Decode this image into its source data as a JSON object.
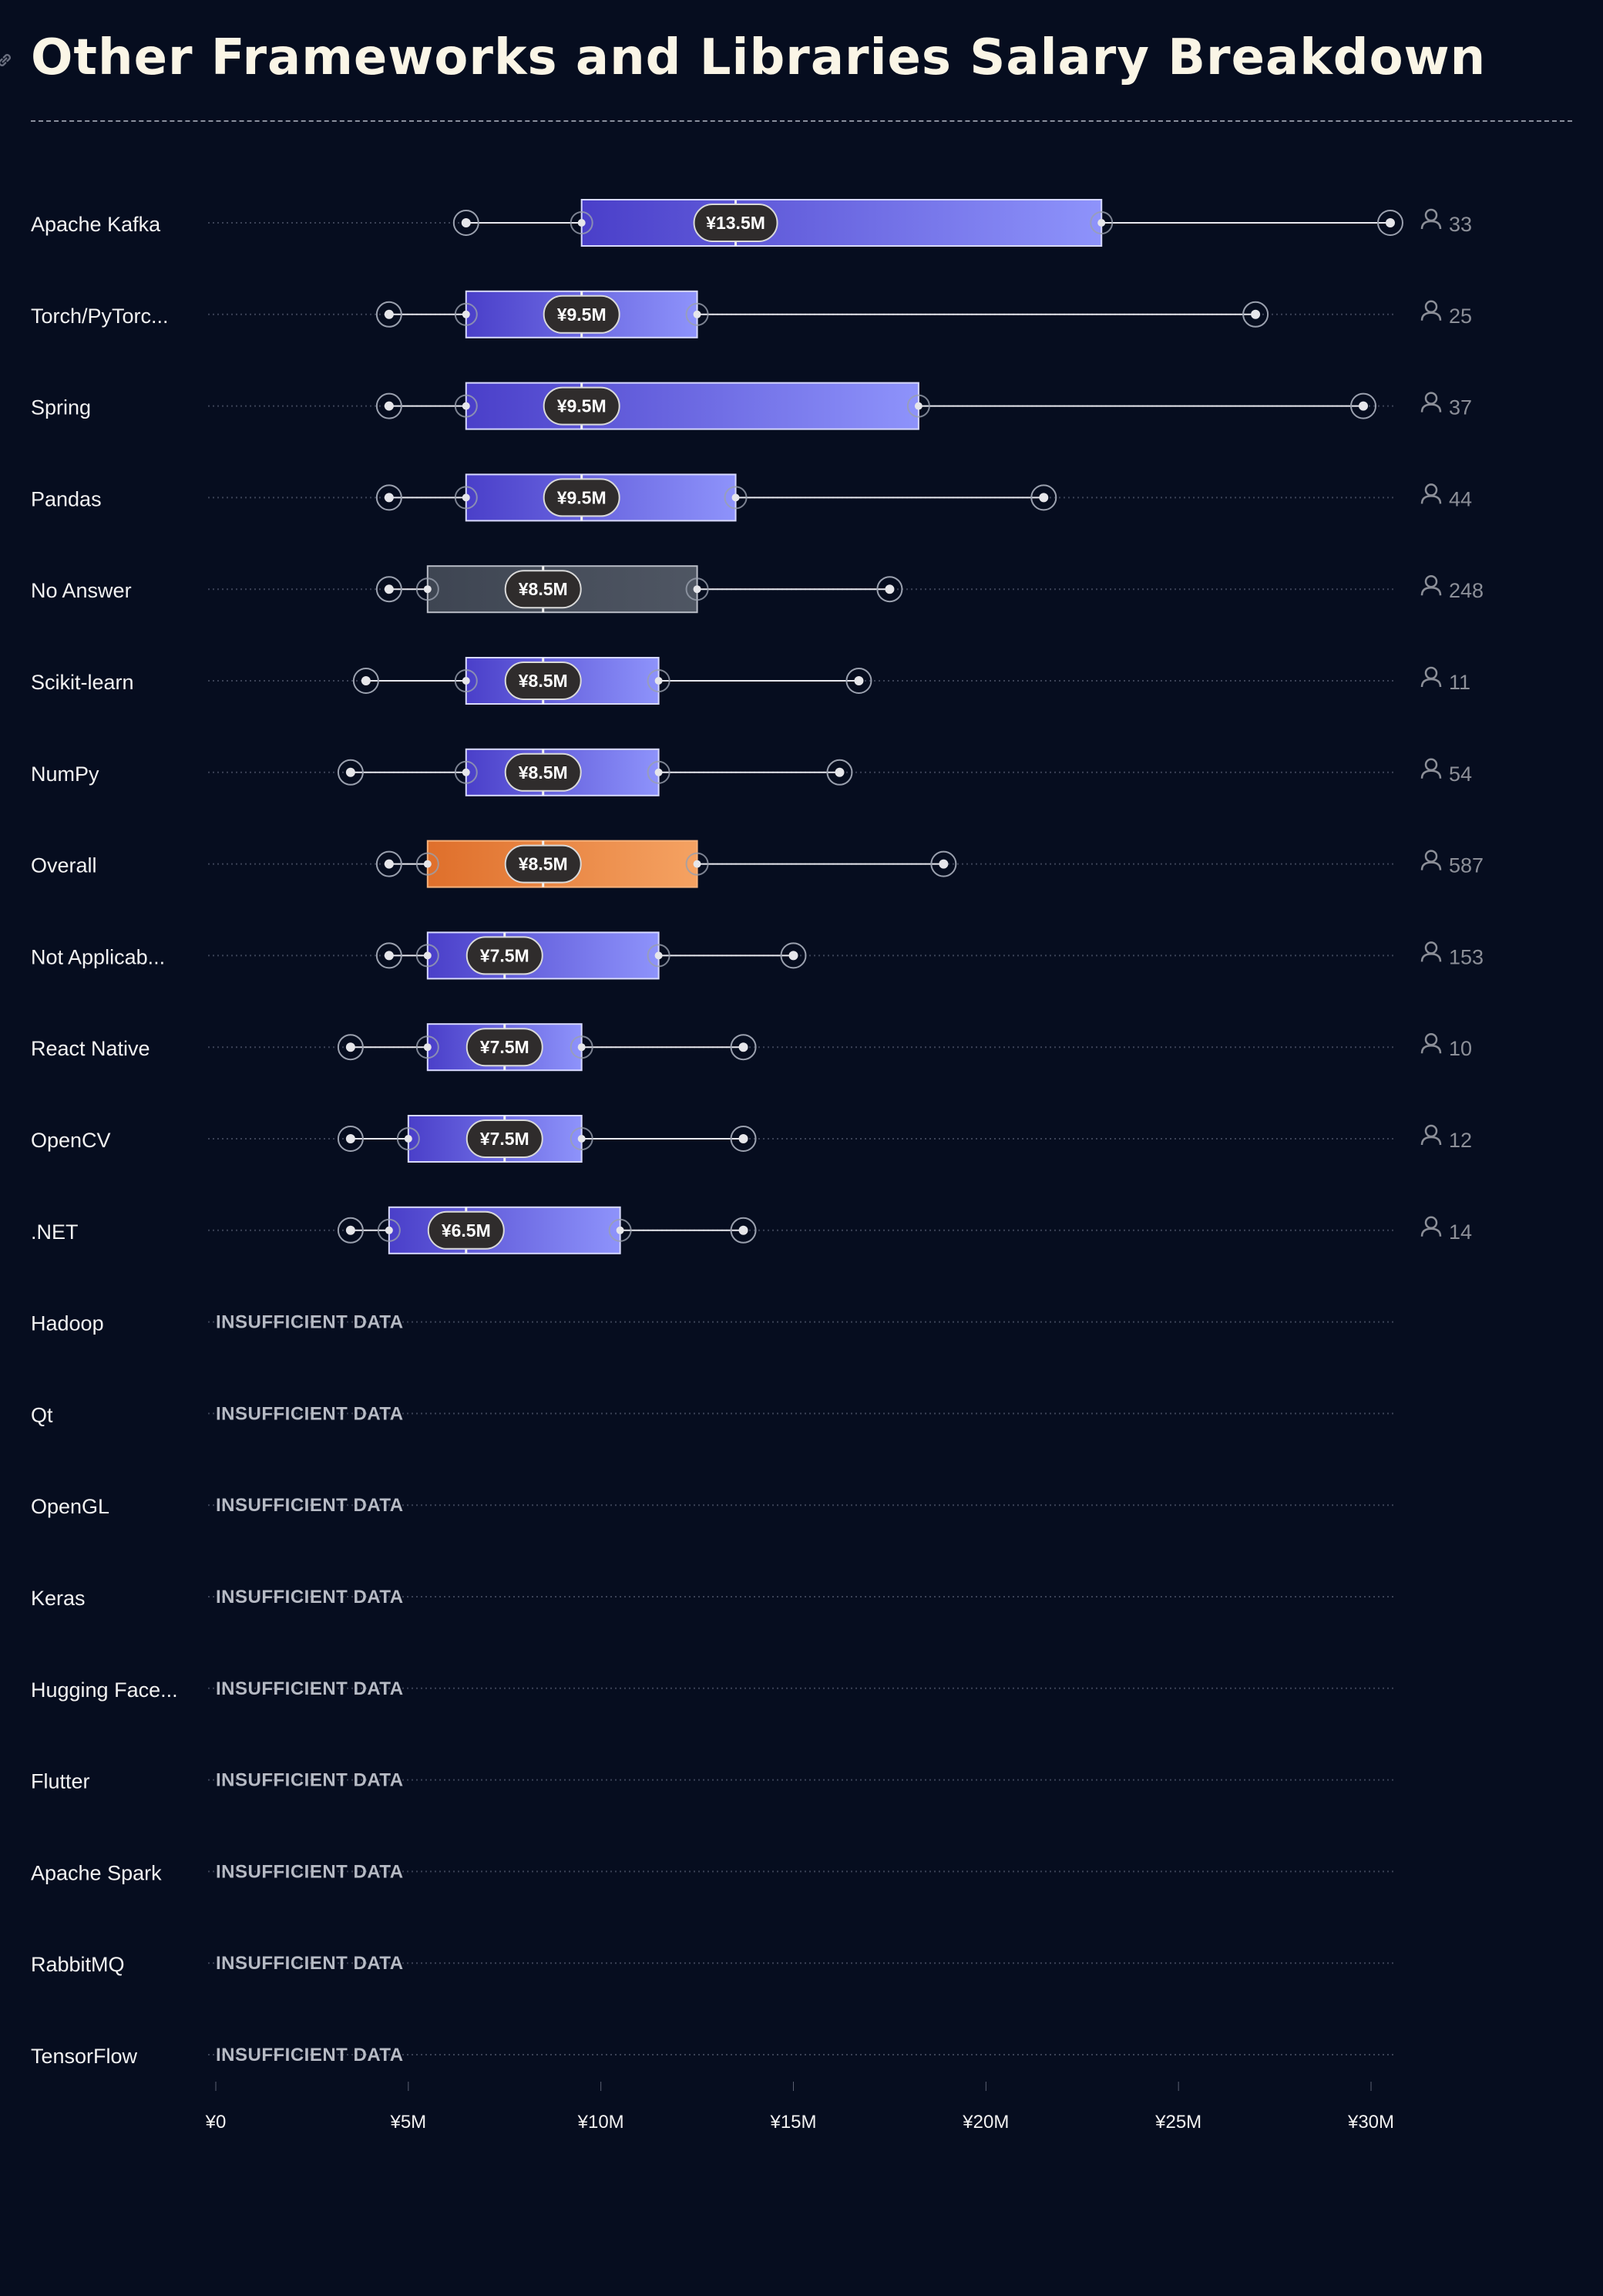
{
  "title": "Other Frameworks and Libraries Salary Breakdown",
  "colors": {
    "background": "#060d1f",
    "title": "#faf5e6",
    "framework_box_start": "#4a3fc9",
    "framework_box_end": "#8e93fb",
    "overall_box_start": "#df6f2b",
    "overall_box_end": "#f5a262",
    "no_answer_box_start": "#3e4552",
    "no_answer_box_end": "#4f5663",
    "median_pill": "#2f2c2c",
    "insufficient_text": "#b6bac4",
    "count_text": "#8c8f98"
  },
  "icons": {
    "title": "link-icon",
    "count": "person-icon"
  },
  "chart_data": {
    "type": "box",
    "xlim": [
      0,
      30
    ],
    "x_ticks": [
      {
        "value": 0,
        "label": "¥0"
      },
      {
        "value": 5,
        "label": "¥5M"
      },
      {
        "value": 10,
        "label": "¥10M"
      },
      {
        "value": 15,
        "label": "¥15M"
      },
      {
        "value": 20,
        "label": "¥20M"
      },
      {
        "value": 25,
        "label": "¥25M"
      },
      {
        "value": 30,
        "label": "¥30M"
      }
    ],
    "insufficient_label": "INSUFFICIENT DATA",
    "rows": [
      {
        "label": "Apache Kafka",
        "kind": "framework",
        "min": 6.5,
        "p10": 9.5,
        "q1": 9.5,
        "median": 13.5,
        "q3": 23,
        "p90": 23,
        "max": 30.5,
        "median_label": "¥13.5M",
        "count": "33"
      },
      {
        "label": "Torch/PyTorc...",
        "kind": "framework",
        "min": 4.5,
        "p10": 6.5,
        "q1": 6.5,
        "median": 9.5,
        "q3": 12.5,
        "p90": 12.5,
        "max": 27,
        "median_label": "¥9.5M",
        "count": "25"
      },
      {
        "label": "Spring",
        "kind": "framework",
        "min": 4.5,
        "p10": 6.5,
        "q1": 6.5,
        "median": 9.5,
        "q3": 18.25,
        "p90": 18.25,
        "max": 29.8,
        "median_label": "¥9.5M",
        "count": "37"
      },
      {
        "label": "Pandas",
        "kind": "framework",
        "min": 4.5,
        "p10": 6.5,
        "q1": 6.5,
        "median": 9.5,
        "q3": 13.5,
        "p90": 13.5,
        "max": 21.5,
        "median_label": "¥9.5M",
        "count": "44"
      },
      {
        "label": "No Answer",
        "kind": "no_answer",
        "min": 4.5,
        "p10": 5.5,
        "q1": 5.5,
        "median": 8.5,
        "q3": 12.5,
        "p90": 12.5,
        "max": 17.5,
        "median_label": "¥8.5M",
        "count": "248"
      },
      {
        "label": "Scikit-learn",
        "kind": "framework",
        "min": 3.9,
        "p10": 6.5,
        "q1": 6.5,
        "median": 8.5,
        "q3": 11.5,
        "p90": 11.5,
        "max": 16.7,
        "median_label": "¥8.5M",
        "count": "11"
      },
      {
        "label": "NumPy",
        "kind": "framework",
        "min": 3.5,
        "p10": 6.5,
        "q1": 6.5,
        "median": 8.5,
        "q3": 11.5,
        "p90": 11.5,
        "max": 16.2,
        "median_label": "¥8.5M",
        "count": "54"
      },
      {
        "label": "Overall",
        "kind": "overall",
        "min": 4.5,
        "p10": 5.5,
        "q1": 5.5,
        "median": 8.5,
        "q3": 12.5,
        "p90": 12.5,
        "max": 18.9,
        "median_label": "¥8.5M",
        "count": "587"
      },
      {
        "label": "Not Applicab...",
        "kind": "framework",
        "min": 4.5,
        "p10": 5.5,
        "q1": 5.5,
        "median": 7.5,
        "q3": 11.5,
        "p90": 11.5,
        "max": 15,
        "median_label": "¥7.5M",
        "count": "153"
      },
      {
        "label": "React Native",
        "kind": "framework",
        "min": 3.5,
        "p10": 5.5,
        "q1": 5.5,
        "median": 7.5,
        "q3": 9.5,
        "p90": 9.5,
        "max": 13.7,
        "median_label": "¥7.5M",
        "count": "10"
      },
      {
        "label": "OpenCV",
        "kind": "framework",
        "min": 3.5,
        "p10": 5,
        "q1": 5,
        "median": 7.5,
        "q3": 9.5,
        "p90": 9.5,
        "max": 13.7,
        "median_label": "¥7.5M",
        "count": "12"
      },
      {
        "label": ".NET",
        "kind": "framework",
        "min": 3.5,
        "p10": 4.5,
        "q1": 4.5,
        "median": 6.5,
        "q3": 10.5,
        "p90": 10.5,
        "max": 13.7,
        "median_label": "¥6.5M",
        "count": "14"
      },
      {
        "label": "Hadoop",
        "kind": "insufficient"
      },
      {
        "label": "Qt",
        "kind": "insufficient"
      },
      {
        "label": "OpenGL",
        "kind": "insufficient"
      },
      {
        "label": "Keras",
        "kind": "insufficient"
      },
      {
        "label": "Hugging Face...",
        "kind": "insufficient"
      },
      {
        "label": "Flutter",
        "kind": "insufficient"
      },
      {
        "label": "Apache Spark",
        "kind": "insufficient"
      },
      {
        "label": "RabbitMQ",
        "kind": "insufficient"
      },
      {
        "label": "TensorFlow",
        "kind": "insufficient"
      }
    ]
  }
}
